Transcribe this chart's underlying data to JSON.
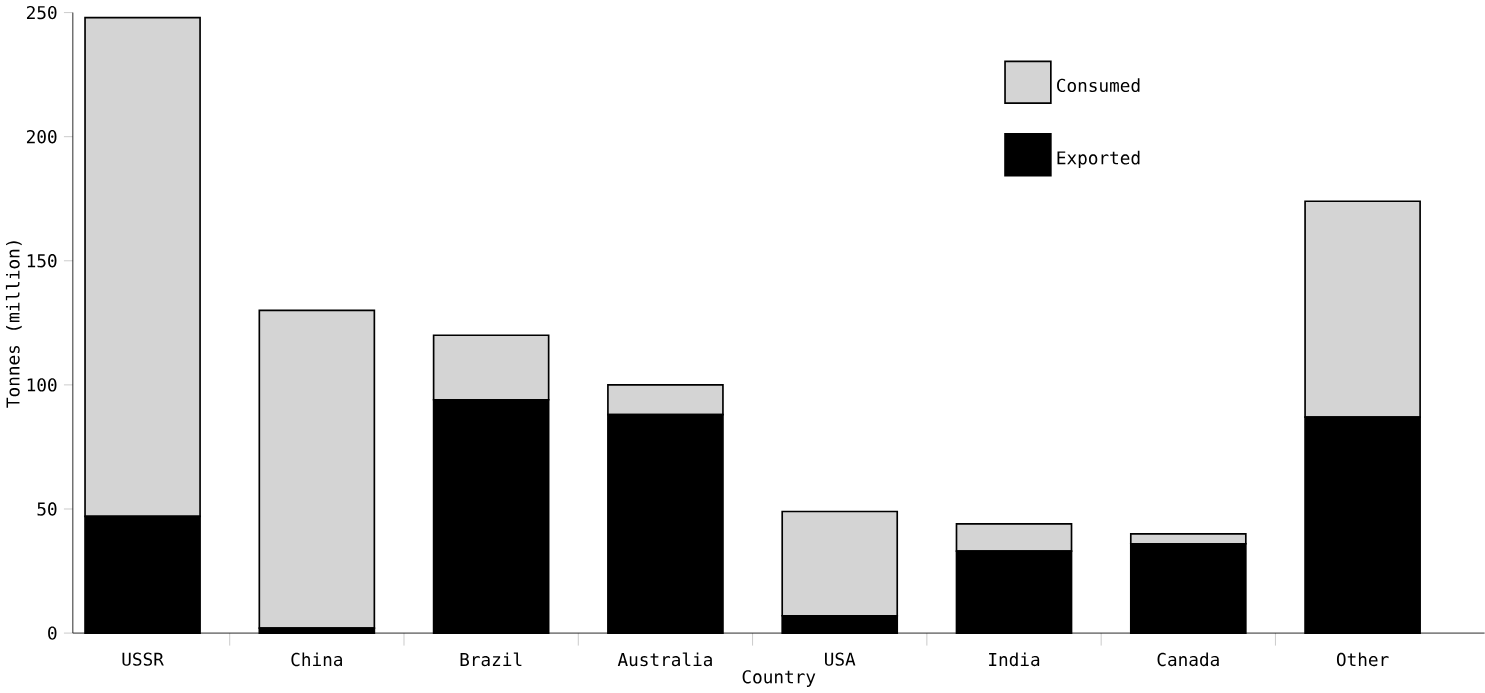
{
  "chart_data": {
    "type": "bar",
    "stacked": true,
    "xlabel": "Country",
    "ylabel": "Tonnes (million)",
    "categories": [
      "USSR",
      "China",
      "Brazil",
      "Australia",
      "USA",
      "India",
      "Canada",
      "Other"
    ],
    "series": [
      {
        "name": "Exported",
        "color": "#000000",
        "values": [
          47,
          2,
          94,
          88,
          7,
          33,
          36,
          87
        ]
      },
      {
        "name": "Consumed",
        "color": "#d4d4d4",
        "values": [
          201,
          128,
          26,
          12,
          42,
          11,
          4,
          87
        ]
      }
    ],
    "ylim": [
      0,
      250
    ],
    "yticks": [
      0,
      50,
      100,
      150,
      200,
      250
    ],
    "grid": false,
    "legend": "top right"
  }
}
